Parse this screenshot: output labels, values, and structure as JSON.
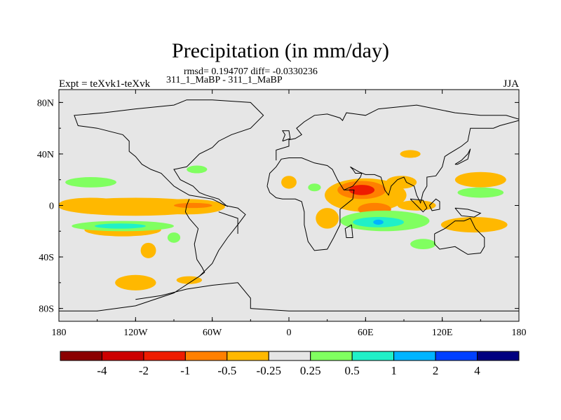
{
  "chart_data": {
    "type": "heatmap",
    "title": "Precipitation (in mm/day)",
    "subtitle": "rmsd= 0.194707 diff= -0.0330236",
    "experiment": "311_1_MaBP - 311_1_MaBP",
    "left_label": "Expt = teXvk1-teXvk",
    "right_label": "JJA",
    "xlim": [
      -180,
      180
    ],
    "ylim": [
      -90,
      90
    ],
    "x_ticks": [
      {
        "value": -180,
        "label": "180"
      },
      {
        "value": -120,
        "label": "120W"
      },
      {
        "value": -60,
        "label": "60W"
      },
      {
        "value": 0,
        "label": "0"
      },
      {
        "value": 60,
        "label": "60E"
      },
      {
        "value": 120,
        "label": "120E"
      },
      {
        "value": 180,
        "label": "180"
      }
    ],
    "y_ticks": [
      {
        "value": 80,
        "label": "80N"
      },
      {
        "value": 40,
        "label": "40N"
      },
      {
        "value": 0,
        "label": "0"
      },
      {
        "value": -40,
        "label": "40S"
      },
      {
        "value": -80,
        "label": "80S"
      }
    ],
    "colorbar": {
      "colors": [
        "#8b0000",
        "#cc0000",
        "#ee1c00",
        "#ff8000",
        "#ffb800",
        "#e6e6e6",
        "#80ff60",
        "#20f0c8",
        "#00b4ff",
        "#0040ff",
        "#000080"
      ],
      "labels": [
        "-4",
        "-2",
        "-1",
        "-0.5",
        "-0.25",
        "0.25",
        "0.5",
        "1",
        "2",
        "4"
      ]
    },
    "background_color": "#e6e6e6",
    "regions": [
      {
        "color": "#ffb800",
        "lon": -120,
        "lat": -1,
        "dlon": 60,
        "dlat": 7
      },
      {
        "color": "#ffb800",
        "lon": -155,
        "lat": 1,
        "dlon": 25,
        "dlat": 5
      },
      {
        "color": "#ffb800",
        "lon": -80,
        "lat": -1,
        "dlon": 30,
        "dlat": 6
      },
      {
        "color": "#ff8000",
        "lon": -75,
        "lat": 0,
        "dlon": 15,
        "dlat": 2
      },
      {
        "color": "#ffb800",
        "lon": -130,
        "lat": -19,
        "dlon": 30,
        "dlat": 5
      },
      {
        "color": "#80ff60",
        "lon": -130,
        "lat": -16,
        "dlon": 40,
        "dlat": 4
      },
      {
        "color": "#20f0c8",
        "lon": -132,
        "lat": -16,
        "dlon": 20,
        "dlat": 2
      },
      {
        "color": "#80ff60",
        "lon": -155,
        "lat": 18,
        "dlon": 20,
        "dlat": 4
      },
      {
        "color": "#ffb800",
        "lon": -120,
        "lat": -60,
        "dlon": 16,
        "dlat": 6
      },
      {
        "color": "#ffb800",
        "lon": -110,
        "lat": -35,
        "dlon": 6,
        "dlat": 6
      },
      {
        "color": "#ffb800",
        "lon": 0,
        "lat": 18,
        "dlon": 6,
        "dlat": 5
      },
      {
        "color": "#ffb800",
        "lon": 60,
        "lat": 8,
        "dlon": 32,
        "dlat": 13
      },
      {
        "color": "#ff8000",
        "lon": 57,
        "lat": 12,
        "dlon": 19,
        "dlat": 7
      },
      {
        "color": "#ee1c00",
        "lon": 57,
        "lat": 12,
        "dlon": 10,
        "dlat": 4
      },
      {
        "color": "#ff8000",
        "lon": 67,
        "lat": -3,
        "dlon": 13,
        "dlat": 5
      },
      {
        "color": "#ffb800",
        "lon": 30,
        "lat": -10,
        "dlon": 9,
        "dlat": 8
      },
      {
        "color": "#80ff60",
        "lon": 75,
        "lat": -12,
        "dlon": 35,
        "dlat": 8
      },
      {
        "color": "#20f0c8",
        "lon": 70,
        "lat": -13,
        "dlon": 20,
        "dlat": 4
      },
      {
        "color": "#00b4ff",
        "lon": 70,
        "lat": -13,
        "dlon": 4,
        "dlat": 2
      },
      {
        "color": "#ffb800",
        "lon": 145,
        "lat": -15,
        "dlon": 26,
        "dlat": 6
      },
      {
        "color": "#ffb800",
        "lon": 150,
        "lat": 20,
        "dlon": 20,
        "dlat": 6
      },
      {
        "color": "#80ff60",
        "lon": 150,
        "lat": 10,
        "dlon": 18,
        "dlat": 4
      },
      {
        "color": "#80ff60",
        "lon": 105,
        "lat": -30,
        "dlon": 10,
        "dlat": 4
      },
      {
        "color": "#ffb800",
        "lon": 88,
        "lat": 18,
        "dlon": 12,
        "dlat": 5
      },
      {
        "color": "#80ff60",
        "lon": 20,
        "lat": 14,
        "dlon": 5,
        "dlat": 3
      },
      {
        "color": "#80ff60",
        "lon": -90,
        "lat": -25,
        "dlon": 5,
        "dlat": 4
      },
      {
        "color": "#ffb800",
        "lon": -78,
        "lat": -58,
        "dlon": 10,
        "dlat": 3
      },
      {
        "color": "#ffb800",
        "lon": 100,
        "lat": 0,
        "dlon": 15,
        "dlat": 4
      },
      {
        "color": "#80ff60",
        "lon": -72,
        "lat": 28,
        "dlon": 8,
        "dlat": 3
      },
      {
        "color": "#ffb800",
        "lon": 95,
        "lat": 40,
        "dlon": 8,
        "dlat": 3
      }
    ],
    "coastlines": [
      [
        [
          -180,
          -82
        ],
        [
          -150,
          -82
        ],
        [
          -120,
          -78
        ],
        [
          -90,
          -68
        ],
        [
          -70,
          -55
        ],
        [
          -60,
          -45
        ],
        [
          -55,
          -35
        ],
        [
          -48,
          -25
        ],
        [
          -40,
          -15
        ],
        [
          -34,
          -7
        ],
        [
          -40,
          -2
        ],
        [
          -50,
          0
        ],
        [
          -60,
          5
        ],
        [
          -78,
          8
        ],
        [
          -85,
          12
        ],
        [
          -90,
          15
        ],
        [
          -95,
          20
        ],
        [
          -100,
          25
        ],
        [
          -108,
          28
        ],
        [
          -115,
          32
        ],
        [
          -120,
          38
        ],
        [
          -125,
          42
        ],
        [
          -125,
          50
        ],
        [
          -130,
          55
        ],
        [
          -150,
          60
        ],
        [
          -165,
          62
        ],
        [
          -168,
          70
        ],
        [
          -145,
          72
        ],
        [
          -120,
          75
        ],
        [
          -90,
          78
        ],
        [
          -80,
          82
        ],
        [
          -60,
          82
        ],
        [
          -30,
          80
        ],
        [
          -20,
          70
        ],
        [
          -30,
          60
        ],
        [
          -45,
          55
        ],
        [
          -55,
          50
        ],
        [
          -60,
          45
        ],
        [
          -70,
          40
        ],
        [
          -75,
          35
        ],
        [
          -80,
          30
        ],
        [
          -90,
          28
        ],
        [
          -85,
          20
        ],
        [
          -75,
          15
        ],
        [
          -70,
          10
        ],
        [
          -65,
          8
        ],
        [
          -55,
          5
        ],
        [
          -48,
          -1
        ]
      ],
      [
        [
          -70,
          -55
        ],
        [
          -66,
          -52
        ],
        [
          -68,
          -48
        ],
        [
          -72,
          -42
        ],
        [
          -74,
          -30
        ],
        [
          -71,
          -18
        ],
        [
          -78,
          -10
        ],
        [
          -81,
          -5
        ],
        [
          -80,
          0
        ],
        [
          -78,
          5
        ]
      ],
      [
        [
          -120,
          -73
        ],
        [
          -100,
          -70
        ],
        [
          -80,
          -65
        ],
        [
          -60,
          -62
        ],
        [
          -40,
          -60
        ],
        [
          -30,
          -72
        ],
        [
          -30,
          -80
        ],
        [
          0,
          -82
        ],
        [
          60,
          -82
        ],
        [
          120,
          -82
        ],
        [
          170,
          -82
        ],
        [
          180,
          -82
        ]
      ],
      [
        [
          -10,
          35
        ],
        [
          -10,
          43
        ],
        [
          0,
          46
        ],
        [
          0,
          51
        ],
        [
          5,
          52
        ],
        [
          10,
          55
        ],
        [
          6,
          60
        ],
        [
          12,
          65
        ],
        [
          20,
          70
        ],
        [
          30,
          71
        ],
        [
          40,
          68
        ],
        [
          42,
          66
        ],
        [
          45,
          72
        ],
        [
          60,
          70
        ],
        [
          70,
          75
        ],
        [
          100,
          78
        ],
        [
          130,
          72
        ],
        [
          150,
          70
        ],
        [
          170,
          70
        ],
        [
          180,
          67
        ]
      ],
      [
        [
          -17,
          15
        ],
        [
          -15,
          25
        ],
        [
          -10,
          30
        ],
        [
          -6,
          36
        ],
        [
          0,
          37
        ],
        [
          10,
          37
        ],
        [
          20,
          33
        ],
        [
          30,
          31
        ],
        [
          34,
          28
        ],
        [
          38,
          20
        ],
        [
          43,
          12
        ],
        [
          51,
          12
        ],
        [
          50,
          5
        ],
        [
          40,
          -3
        ],
        [
          40,
          -15
        ],
        [
          35,
          -25
        ],
        [
          30,
          -34
        ],
        [
          20,
          -35
        ],
        [
          15,
          -28
        ],
        [
          12,
          -15
        ],
        [
          12,
          -5
        ],
        [
          10,
          3
        ],
        [
          5,
          5
        ],
        [
          -5,
          5
        ],
        [
          -10,
          6
        ],
        [
          -15,
          10
        ],
        [
          -17,
          15
        ]
      ],
      [
        [
          43,
          12
        ],
        [
          50,
          15
        ],
        [
          56,
          22
        ],
        [
          57,
          25
        ],
        [
          52,
          25
        ],
        [
          50,
          28
        ],
        [
          48,
          30
        ],
        [
          55,
          26
        ],
        [
          60,
          24
        ],
        [
          67,
          24
        ],
        [
          72,
          22
        ],
        [
          75,
          12
        ],
        [
          78,
          8
        ],
        [
          80,
          15
        ],
        [
          85,
          20
        ],
        [
          90,
          22
        ],
        [
          92,
          18
        ],
        [
          98,
          15
        ],
        [
          100,
          8
        ],
        [
          103,
          2
        ],
        [
          105,
          10
        ],
        [
          108,
          15
        ],
        [
          108,
          22
        ],
        [
          115,
          23
        ],
        [
          120,
          30
        ],
        [
          122,
          38
        ],
        [
          125,
          40
        ],
        [
          130,
          43
        ],
        [
          135,
          46
        ],
        [
          140,
          50
        ],
        [
          142,
          60
        ],
        [
          160,
          60
        ],
        [
          165,
          62
        ],
        [
          180,
          66
        ]
      ],
      [
        [
          114,
          -22
        ],
        [
          122,
          -18
        ],
        [
          130,
          -12
        ],
        [
          137,
          -12
        ],
        [
          142,
          -10
        ],
        [
          146,
          -18
        ],
        [
          153,
          -25
        ],
        [
          153,
          -32
        ],
        [
          150,
          -37
        ],
        [
          140,
          -38
        ],
        [
          135,
          -35
        ],
        [
          130,
          -32
        ],
        [
          118,
          -34
        ],
        [
          114,
          -30
        ],
        [
          114,
          -22
        ]
      ],
      [
        [
          95,
          5
        ],
        [
          100,
          0
        ],
        [
          105,
          -5
        ],
        [
          108,
          -2
        ],
        [
          105,
          4
        ],
        [
          95,
          5
        ]
      ],
      [
        [
          110,
          0
        ],
        [
          115,
          5
        ],
        [
          118,
          3
        ],
        [
          118,
          -3
        ],
        [
          112,
          -4
        ],
        [
          110,
          0
        ]
      ],
      [
        [
          130,
          -2
        ],
        [
          140,
          -3
        ],
        [
          150,
          -6
        ],
        [
          145,
          -9
        ],
        [
          135,
          -8
        ],
        [
          130,
          -2
        ]
      ],
      [
        [
          49,
          -15
        ],
        [
          50,
          -25
        ],
        [
          45,
          -25
        ],
        [
          44,
          -18
        ],
        [
          49,
          -15
        ]
      ],
      [
        [
          -5,
          50
        ],
        [
          -3,
          55
        ],
        [
          -5,
          58
        ],
        [
          0,
          58
        ],
        [
          1,
          52
        ],
        [
          -5,
          50
        ]
      ],
      [
        [
          130,
          32
        ],
        [
          135,
          35
        ],
        [
          140,
          40
        ],
        [
          142,
          44
        ],
        [
          140,
          36
        ],
        [
          132,
          32
        ],
        [
          130,
          32
        ]
      ],
      [
        [
          -55,
          -5
        ],
        [
          -40,
          -10
        ],
        [
          -40,
          -22
        ]
      ]
    ]
  }
}
